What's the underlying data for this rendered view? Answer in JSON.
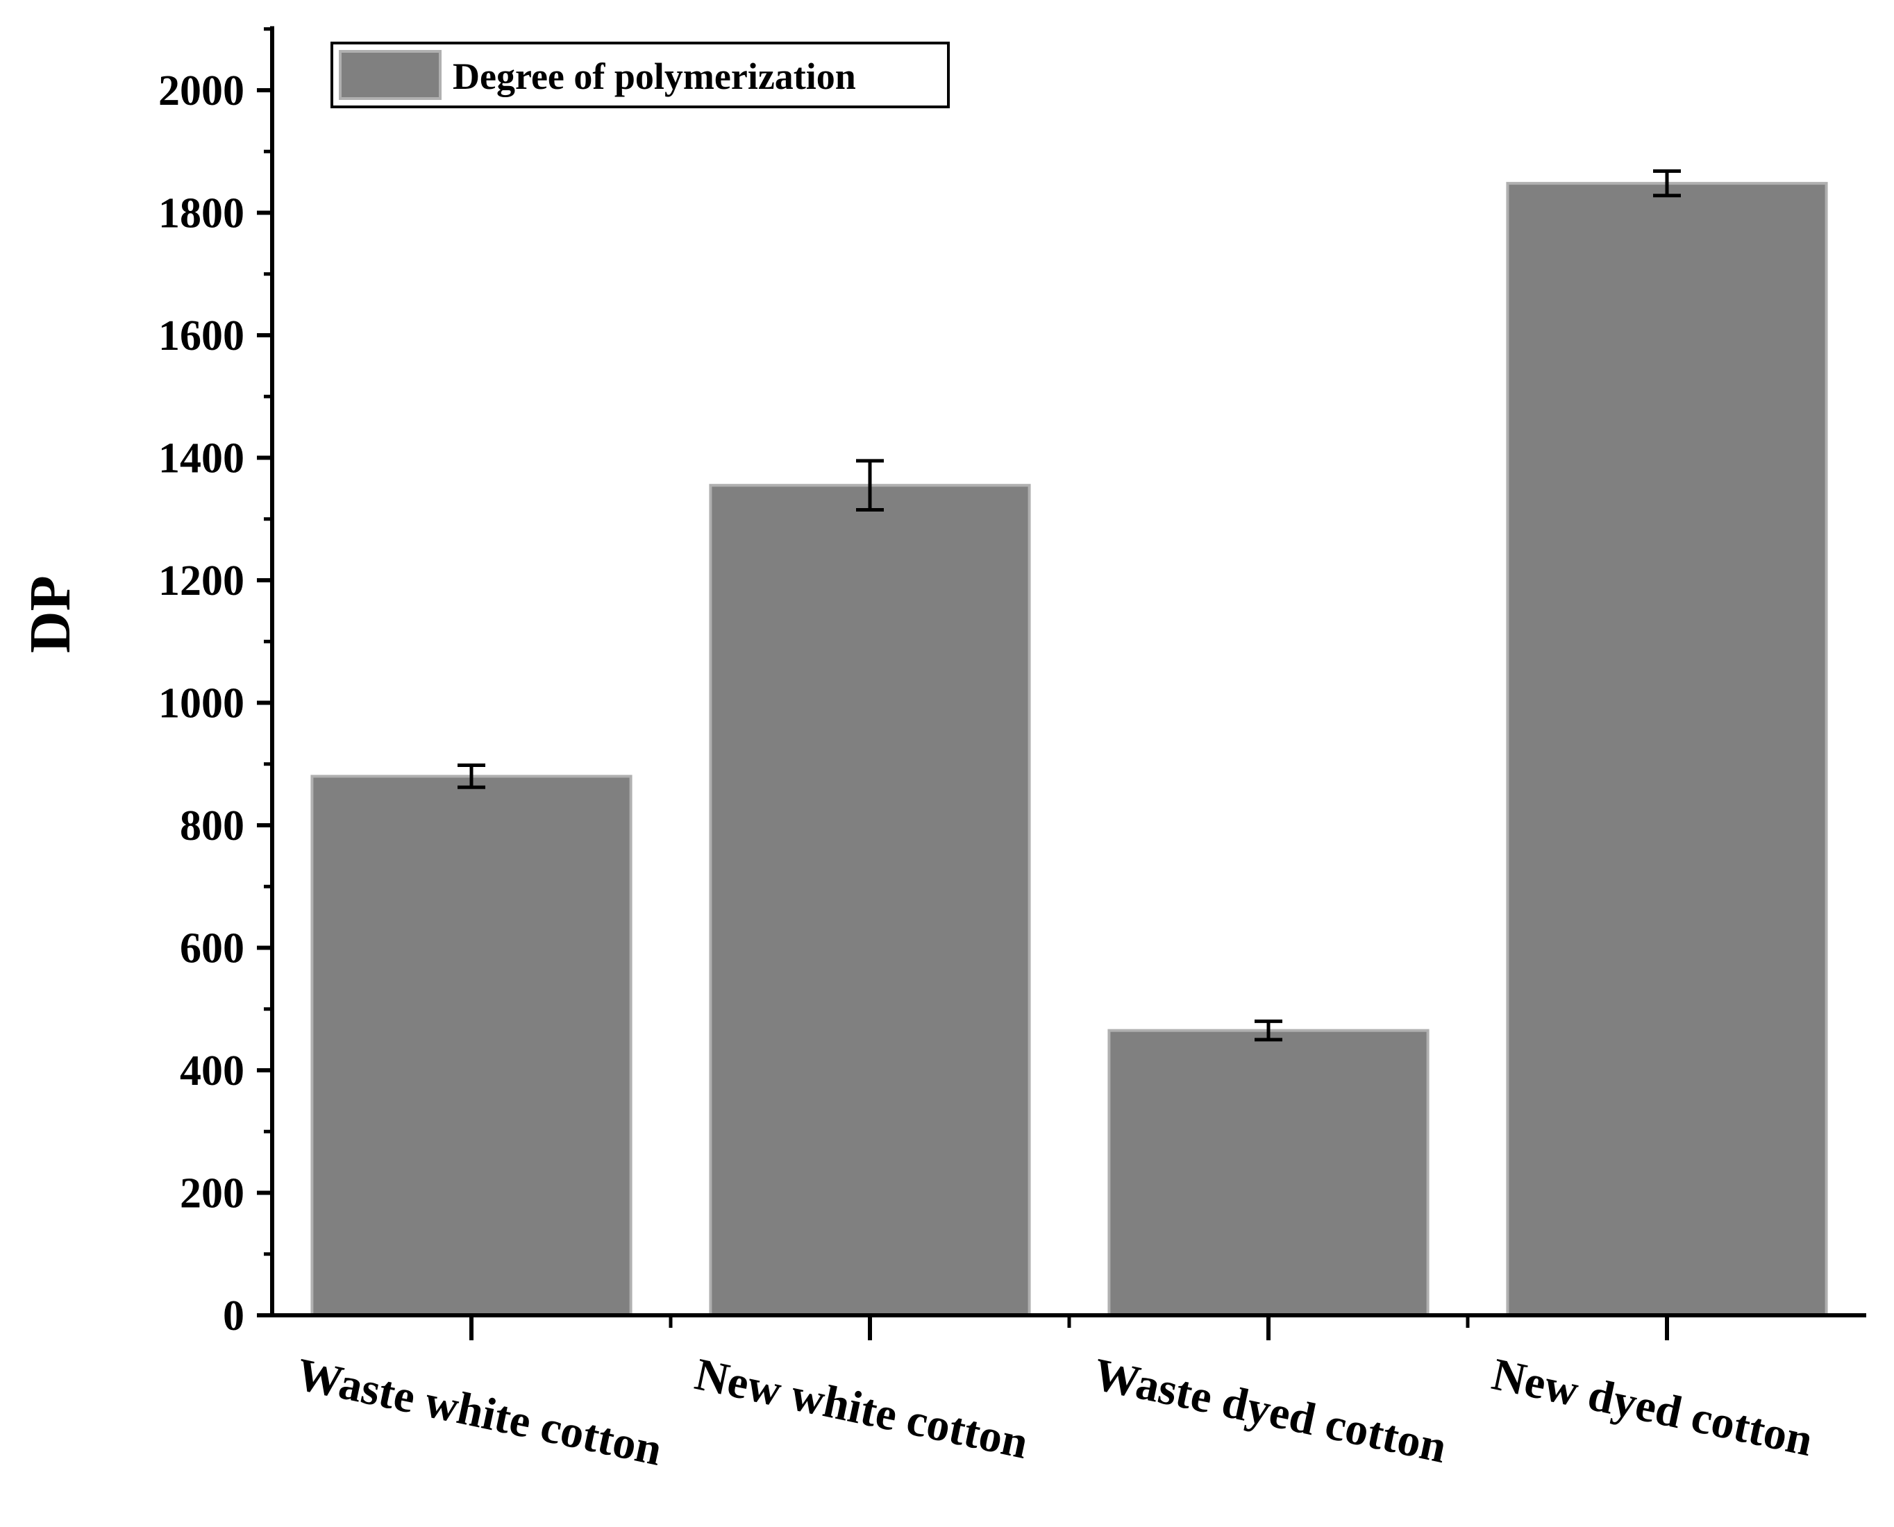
{
  "chart_data": {
    "type": "bar",
    "title": "",
    "xlabel": "",
    "ylabel": "DP",
    "ylim": [
      0,
      2100
    ],
    "yticks": [
      0,
      200,
      400,
      600,
      800,
      1000,
      1200,
      1400,
      1600,
      1800,
      2000
    ],
    "ytick_labels": [
      "0",
      "200",
      "400",
      "600",
      "800",
      "1000",
      "1200",
      "1400",
      "1600",
      "1800",
      "2000"
    ],
    "categories": [
      "Waste white cotton",
      "New white cotton",
      "Waste dyed cotton",
      "New dyed cotton"
    ],
    "series": [
      {
        "name": "Degree of polymerization",
        "values": [
          880,
          1355,
          465,
          1848
        ],
        "errors": [
          18,
          40,
          15,
          20
        ],
        "color": "#808080"
      }
    ],
    "legend_position": "top-left",
    "grid": false
  }
}
